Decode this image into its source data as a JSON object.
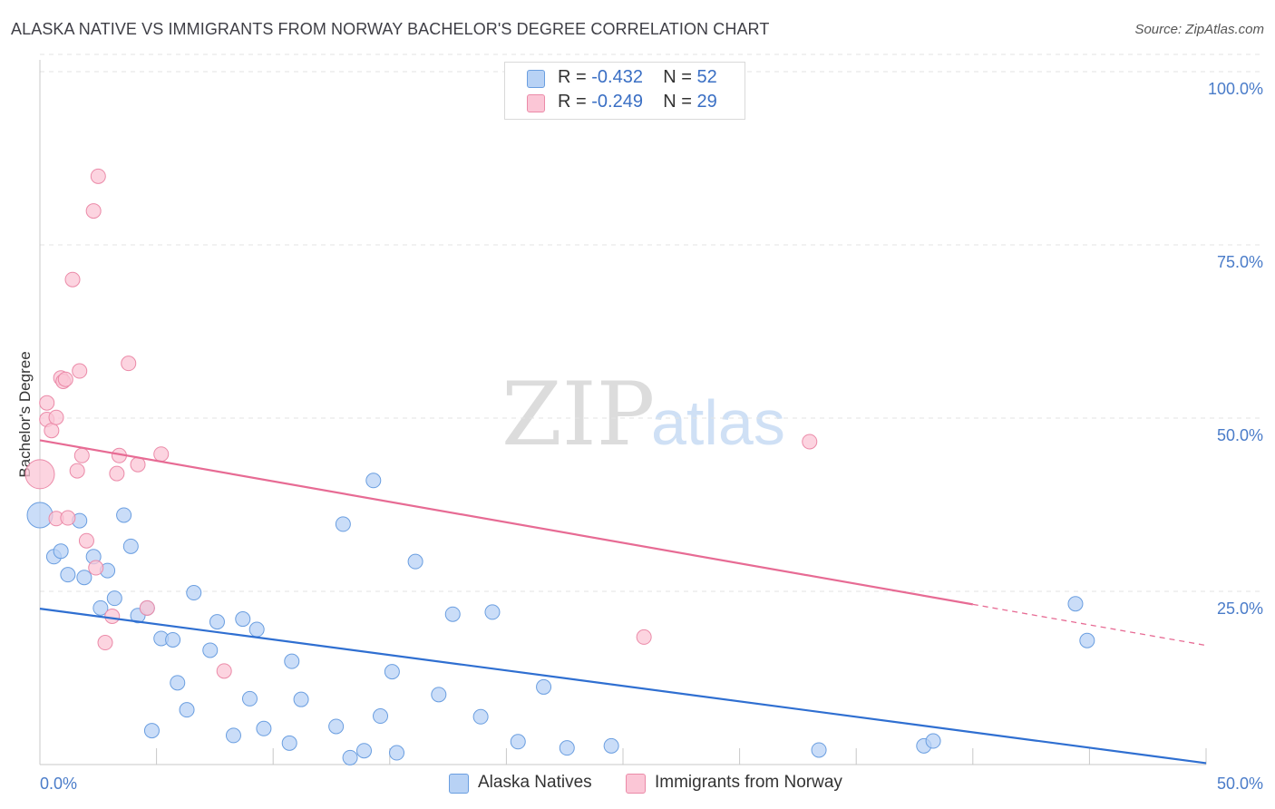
{
  "title": "ALASKA NATIVE VS IMMIGRANTS FROM NORWAY BACHELOR'S DEGREE CORRELATION CHART",
  "source": "Source: ZipAtlas.com",
  "watermark": {
    "zip": "ZIP",
    "atlas": "atlas"
  },
  "legend": {
    "r_label": "R = ",
    "n_label": "N = ",
    "series": [
      {
        "r": "-0.432",
        "n": "52",
        "fill": "#b8d2f5",
        "stroke": "#6a9ee0"
      },
      {
        "r": "-0.249",
        "n": "29",
        "fill": "#fbc6d6",
        "stroke": "#eb8aa8"
      }
    ]
  },
  "bottom_legend": [
    "Alaska Natives",
    "Immigrants from Norway"
  ],
  "colors": {
    "blue_line": "#2f6fd1",
    "pink_line": "#e76b94",
    "tick_text": "#4a7cc9",
    "grid": "#e3e3e3"
  },
  "chart_data": {
    "type": "scatter",
    "xlabel": "",
    "ylabel": "Bachelor's Degree",
    "xlim": [
      0,
      50
    ],
    "ylim": [
      0,
      100
    ],
    "x_tick_labels": [
      "0.0%",
      "50.0%"
    ],
    "y_ticks": [
      25,
      50,
      75,
      100
    ],
    "y_tick_labels": [
      "25.0%",
      "50.0%",
      "75.0%",
      "100.0%"
    ],
    "series": [
      {
        "name": "Alaska Natives",
        "points": [
          [
            0.0,
            36.0,
            14
          ],
          [
            0.6,
            30.0,
            8
          ],
          [
            0.9,
            30.8,
            8
          ],
          [
            1.2,
            27.4,
            8
          ],
          [
            1.7,
            35.2,
            8
          ],
          [
            1.9,
            27.0,
            8
          ],
          [
            2.3,
            30.0,
            8
          ],
          [
            2.6,
            22.6,
            8
          ],
          [
            2.9,
            28.0,
            8
          ],
          [
            3.2,
            24.0,
            8
          ],
          [
            3.6,
            36.0,
            8
          ],
          [
            3.9,
            31.5,
            8
          ],
          [
            4.2,
            21.5,
            8
          ],
          [
            4.6,
            22.6,
            8
          ],
          [
            4.8,
            4.9,
            8
          ],
          [
            5.2,
            18.2,
            8
          ],
          [
            5.7,
            18.0,
            8
          ],
          [
            5.9,
            11.8,
            8
          ],
          [
            6.3,
            7.9,
            8
          ],
          [
            6.6,
            24.8,
            8
          ],
          [
            7.3,
            16.5,
            8
          ],
          [
            7.6,
            20.6,
            8
          ],
          [
            8.3,
            4.2,
            8
          ],
          [
            8.7,
            21.0,
            8
          ],
          [
            9.0,
            9.5,
            8
          ],
          [
            9.3,
            19.5,
            8
          ],
          [
            9.6,
            5.2,
            8
          ],
          [
            10.7,
            3.1,
            8
          ],
          [
            10.8,
            14.9,
            8
          ],
          [
            11.2,
            9.4,
            8
          ],
          [
            12.7,
            5.5,
            8
          ],
          [
            13.0,
            34.7,
            8
          ],
          [
            13.3,
            1.0,
            8
          ],
          [
            13.9,
            2.0,
            8
          ],
          [
            14.3,
            41.0,
            8
          ],
          [
            14.6,
            7.0,
            8
          ],
          [
            15.1,
            13.4,
            8
          ],
          [
            15.3,
            1.7,
            8
          ],
          [
            16.1,
            29.3,
            8
          ],
          [
            17.1,
            10.1,
            8
          ],
          [
            17.7,
            21.7,
            8
          ],
          [
            18.9,
            6.9,
            8
          ],
          [
            19.4,
            22.0,
            8
          ],
          [
            20.5,
            3.3,
            8
          ],
          [
            21.6,
            11.2,
            8
          ],
          [
            22.6,
            2.4,
            8
          ],
          [
            24.5,
            2.7,
            8
          ],
          [
            33.4,
            2.1,
            8
          ],
          [
            37.9,
            2.7,
            8
          ],
          [
            38.3,
            3.4,
            8
          ],
          [
            44.4,
            23.2,
            8
          ],
          [
            44.9,
            17.9,
            8
          ]
        ]
      },
      {
        "name": "Immigrants from Norway",
        "points": [
          [
            0.0,
            41.9,
            16
          ],
          [
            0.3,
            49.8,
            8
          ],
          [
            0.3,
            52.2,
            8
          ],
          [
            0.5,
            48.2,
            8
          ],
          [
            0.7,
            35.5,
            8
          ],
          [
            0.7,
            50.1,
            8
          ],
          [
            0.9,
            55.8,
            8
          ],
          [
            1.0,
            55.3,
            8
          ],
          [
            1.1,
            55.6,
            8
          ],
          [
            1.2,
            35.6,
            8
          ],
          [
            1.4,
            70.0,
            8
          ],
          [
            1.6,
            42.4,
            8
          ],
          [
            1.7,
            56.8,
            8
          ],
          [
            1.8,
            44.6,
            8
          ],
          [
            2.0,
            32.3,
            8
          ],
          [
            2.3,
            79.9,
            8
          ],
          [
            2.4,
            28.4,
            8
          ],
          [
            2.5,
            84.9,
            8
          ],
          [
            2.8,
            17.6,
            8
          ],
          [
            3.1,
            21.4,
            8
          ],
          [
            3.3,
            42.0,
            8
          ],
          [
            3.4,
            44.6,
            8
          ],
          [
            3.8,
            57.9,
            8
          ],
          [
            4.2,
            43.3,
            8
          ],
          [
            4.6,
            22.6,
            8
          ],
          [
            5.2,
            44.8,
            8
          ],
          [
            7.9,
            13.5,
            8
          ],
          [
            25.9,
            18.4,
            8
          ],
          [
            33.0,
            46.6,
            8
          ]
        ]
      }
    ],
    "trend_lines": [
      {
        "series": "Alaska Natives",
        "x": [
          0,
          50
        ],
        "y": [
          22.5,
          0.2
        ],
        "dashed_from": null
      },
      {
        "series": "Immigrants from Norway",
        "x": [
          0,
          50
        ],
        "y": [
          46.8,
          17.2
        ],
        "dashed_from": 40
      }
    ]
  }
}
